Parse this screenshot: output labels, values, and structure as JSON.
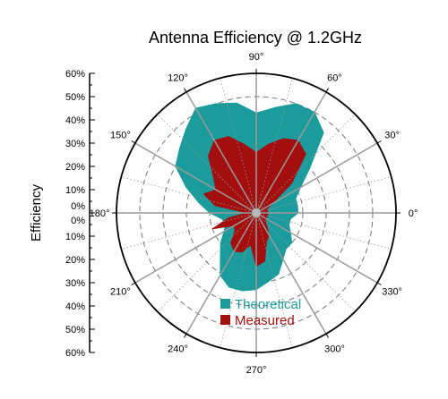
{
  "chart_data": {
    "type": "polar-area",
    "title": "Antenna Efficiency @ 1.2GHz",
    "ylabel": "Efficiency",
    "radial_range": [
      0,
      60
    ],
    "radial_unit": "%",
    "radial_ticks": [
      "0%",
      "10%",
      "20%",
      "30%",
      "40%",
      "50%",
      "60%"
    ],
    "angle_ticks": [
      0,
      30,
      60,
      90,
      120,
      150,
      180,
      210,
      240,
      270,
      300,
      330
    ],
    "angle_tick_labels": [
      "0°",
      "30°",
      "60°",
      "90°",
      "120°",
      "150°",
      "180°",
      "210°",
      "240°",
      "270°",
      "300°",
      "330°"
    ],
    "grid": true,
    "legend_position": "bottom-center",
    "theta": [
      0,
      10,
      20,
      30,
      40,
      50,
      60,
      70,
      80,
      90,
      100,
      110,
      120,
      130,
      140,
      150,
      160,
      170,
      180,
      190,
      200,
      210,
      220,
      230,
      240,
      250,
      260,
      270,
      280,
      290,
      300,
      310,
      320,
      330,
      340,
      350
    ],
    "series": [
      {
        "name": "Theoretical",
        "color": "#1b9b9b",
        "values": [
          18,
          18,
          18,
          22,
          30,
          45,
          50,
          50,
          46,
          43,
          48,
          50,
          52,
          47,
          43,
          40,
          32,
          25,
          20,
          15,
          14,
          16,
          20,
          24,
          31,
          34,
          34,
          33,
          30,
          28,
          23,
          20,
          20,
          17,
          15,
          15
        ]
      },
      {
        "name": "Measured",
        "color": "#a30e0e",
        "values": [
          5,
          5,
          5,
          8,
          20,
          33,
          36,
          34,
          30,
          26,
          30,
          35,
          36,
          32,
          24,
          20,
          24,
          18,
          4,
          12,
          20,
          11,
          12,
          17,
          19,
          18,
          14,
          23,
          21,
          13,
          11,
          7,
          5,
          5,
          5,
          5
        ]
      }
    ]
  }
}
